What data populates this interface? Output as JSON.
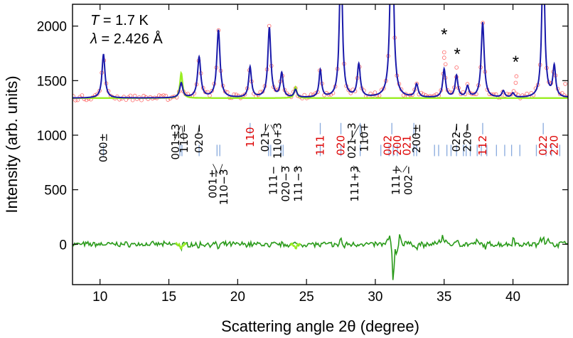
{
  "chart_data": {
    "type": "line",
    "title": "",
    "xlabel": "Scattering angle 2θ (degree)",
    "ylabel": "Intensity (arb. units)",
    "xlim": [
      8,
      44
    ],
    "ylim": [
      -370,
      2200
    ],
    "xticks": [
      10,
      15,
      20,
      25,
      30,
      35,
      40
    ],
    "yticks": [
      0,
      500,
      1000,
      1500,
      2000
    ],
    "annotations": {
      "temperature": {
        "symbol": "T",
        "text": " = 1.7 K"
      },
      "wavelength": {
        "symbol": "λ",
        "text": " = 2.426 Å"
      }
    },
    "colors": {
      "observed": "#ff6666",
      "calculated": "#1a1aaa",
      "difference": "#2a9a1a",
      "magnetic_calc": "#99ee22",
      "bragg_ticks": "#88aadd",
      "nuclear_labels": "#dd0000"
    },
    "series": [
      {
        "role": "calculated",
        "baseline": 1340,
        "peaks": [
          [
            10.25,
            400,
            0.13
          ],
          [
            15.9,
            135,
            0.13
          ],
          [
            17.2,
            370,
            0.14
          ],
          [
            18.6,
            620,
            0.14
          ],
          [
            20.9,
            280,
            0.12
          ],
          [
            22.3,
            640,
            0.13
          ],
          [
            23.2,
            220,
            0.12
          ],
          [
            24.2,
            70,
            0.12
          ],
          [
            26.0,
            250,
            0.11
          ],
          [
            27.5,
            1400,
            0.12
          ],
          [
            28.8,
            300,
            0.13
          ],
          [
            31.2,
            2200,
            0.12
          ],
          [
            33.0,
            120,
            0.13
          ],
          [
            35.0,
            260,
            0.12
          ],
          [
            35.9,
            200,
            0.12
          ],
          [
            36.7,
            100,
            0.12
          ],
          [
            37.8,
            690,
            0.13
          ],
          [
            39.3,
            60,
            0.12
          ],
          [
            40.0,
            40,
            0.12
          ],
          [
            42.2,
            1400,
            0.12
          ],
          [
            43.0,
            280,
            0.12
          ]
        ]
      },
      {
        "role": "magnetic_calculated",
        "peaks": [
          [
            15.9,
            230,
            0.11
          ],
          [
            24.2,
            100,
            0.11
          ]
        ]
      },
      {
        "role": "difference",
        "spikes": [
          [
            15.9,
            -40
          ],
          [
            17.1,
            -30
          ],
          [
            18.6,
            -40
          ],
          [
            22.3,
            -40
          ],
          [
            26.0,
            -20
          ],
          [
            27.2,
            -20
          ],
          [
            27.5,
            60
          ],
          [
            27.7,
            -30
          ],
          [
            29.0,
            15
          ],
          [
            30.9,
            30
          ],
          [
            31.05,
            70
          ],
          [
            31.3,
            -360
          ],
          [
            31.55,
            -80
          ],
          [
            31.8,
            90
          ],
          [
            32.2,
            30
          ],
          [
            33.0,
            -40
          ],
          [
            33.6,
            -20
          ],
          [
            34.6,
            40
          ],
          [
            34.9,
            90
          ],
          [
            35.2,
            40
          ],
          [
            36.0,
            40
          ],
          [
            37.4,
            30
          ],
          [
            38.0,
            -30
          ],
          [
            40.05,
            70
          ],
          [
            41.8,
            -20
          ],
          [
            42.0,
            60
          ],
          [
            42.2,
            80
          ],
          [
            42.5,
            60
          ],
          [
            43.7,
            40
          ]
        ]
      }
    ],
    "extra_observed": [
      [
        35.0,
        1760
      ],
      [
        35.0,
        1710
      ],
      [
        35.1,
        1650
      ],
      [
        35.9,
        1620
      ],
      [
        40.25,
        1540
      ],
      [
        40.2,
        1480
      ],
      [
        43.8,
        1470
      ]
    ],
    "star_marks": [
      [
        35.0,
        1910
      ],
      [
        35.95,
        1730
      ],
      [
        40.2,
        1660
      ]
    ],
    "bragg_tick_rows": [
      {
        "color": "#88aadd",
        "level": 1060,
        "positions": [
          20.9,
          26.0,
          27.5,
          28.9,
          31.2,
          32.8,
          37.8,
          42.2
        ]
      },
      {
        "color": "#88aadd",
        "level": 860,
        "positions": [
          10.25,
          15.8,
          15.95,
          17.2,
          18.5,
          18.7,
          22.25,
          22.4,
          23.15,
          23.3,
          26.0,
          27.5,
          28.9,
          30.4,
          31.0,
          31.3,
          31.6,
          32.8,
          33.0,
          34.3,
          34.6,
          35.2,
          35.5,
          35.9,
          36.4,
          36.6,
          36.9,
          37.4,
          37.7,
          38.1,
          38.8,
          39.4,
          39.9,
          40.5,
          41.7,
          42.4,
          42.8,
          43.4
        ]
      }
    ],
    "peak_labels": [
      {
        "x": 10.25,
        "y": 1020,
        "rot": -90,
        "color": "#000000",
        "text": "000±"
      },
      {
        "x": 15.5,
        "y": 1105,
        "rot": -90,
        "color": "#000000",
        "text": "001±3"
      },
      {
        "x": 16.1,
        "y": 1105,
        "rot": -90,
        "color": "#000000",
        "text": "110−"
      },
      {
        "x": 17.2,
        "y": 1105,
        "rot": -90,
        "color": "#000000",
        "text": "020−"
      },
      {
        "x": 20.9,
        "y": 1075,
        "rot": -90,
        "color": "#dd0000",
        "text": "110"
      },
      {
        "x": 22.0,
        "y": 1115,
        "rot": -90,
        "color": "#000000",
        "text": "021−"
      },
      {
        "x": 22.9,
        "y": 1115,
        "rot": -90,
        "color": "#000000",
        "text": "110+3"
      },
      {
        "x": 26.0,
        "y": 1000,
        "rot": -90,
        "color": "#dd0000",
        "text": "111"
      },
      {
        "x": 27.5,
        "y": 1000,
        "rot": -90,
        "color": "#dd0000",
        "text": "020"
      },
      {
        "x": 28.3,
        "y": 1115,
        "rot": -90,
        "color": "#000000",
        "text": "021−3"
      },
      {
        "x": 29.2,
        "y": 1115,
        "rot": -90,
        "color": "#000000",
        "text": "110+"
      },
      {
        "x": 30.9,
        "y": 1000,
        "rot": -90,
        "color": "#dd0000",
        "text": "002"
      },
      {
        "x": 31.6,
        "y": 1000,
        "rot": -90,
        "color": "#dd0000",
        "text": "200"
      },
      {
        "x": 32.3,
        "y": 1000,
        "rot": -90,
        "color": "#dd0000",
        "text": "021"
      },
      {
        "x": 33.0,
        "y": 1105,
        "rot": -90,
        "color": "#000000",
        "text": "200±"
      },
      {
        "x": 35.9,
        "y": 1115,
        "rot": -90,
        "color": "#000000",
        "text": "022−"
      },
      {
        "x": 36.7,
        "y": 1115,
        "rot": -90,
        "color": "#000000",
        "text": "220−"
      },
      {
        "x": 37.8,
        "y": 1000,
        "rot": -90,
        "color": "#dd0000",
        "text": "112"
      },
      {
        "x": 42.2,
        "y": 1000,
        "rot": -90,
        "color": "#dd0000",
        "text": "022"
      },
      {
        "x": 43.0,
        "y": 1000,
        "rot": -90,
        "color": "#dd0000",
        "text": "220"
      },
      {
        "x": 18.2,
        "y": 690,
        "rot": -90,
        "color": "#000000",
        "text": "001±"
      },
      {
        "x": 19.0,
        "y": 690,
        "rot": -90,
        "color": "#000000",
        "text": "110−3"
      },
      {
        "x": 22.6,
        "y": 720,
        "rot": -90,
        "color": "#000000",
        "text": "111−"
      },
      {
        "x": 23.5,
        "y": 720,
        "rot": -90,
        "color": "#000000",
        "text": "020−3"
      },
      {
        "x": 24.4,
        "y": 720,
        "rot": -90,
        "color": "#000000",
        "text": "111−3"
      },
      {
        "x": 28.5,
        "y": 720,
        "rot": -90,
        "color": "#000000",
        "text": "111+3"
      },
      {
        "x": 31.5,
        "y": 720,
        "rot": -90,
        "color": "#000000",
        "text": "111+"
      },
      {
        "x": 32.4,
        "y": 720,
        "rot": -90,
        "color": "#000000",
        "text": "002−"
      }
    ],
    "leader_lines": [
      [
        15.4,
        950,
        15.85,
        1085
      ],
      [
        16.1,
        950,
        15.95,
        1085
      ],
      [
        17.1,
        1000,
        17.2,
        1085
      ],
      [
        21.9,
        1010,
        22.25,
        1095
      ],
      [
        22.8,
        1010,
        22.4,
        1095
      ],
      [
        28.2,
        950,
        28.85,
        1095
      ],
      [
        29.1,
        950,
        28.95,
        1095
      ],
      [
        32.9,
        990,
        32.95,
        1095
      ],
      [
        35.8,
        1000,
        35.9,
        1095
      ],
      [
        36.6,
        1000,
        36.65,
        1095
      ],
      [
        18.2,
        735,
        18.55,
        650
      ],
      [
        18.9,
        735,
        18.65,
        650
      ],
      [
        23.2,
        720,
        23.2,
        660
      ],
      [
        24.3,
        720,
        24.2,
        660
      ],
      [
        28.4,
        720,
        28.9,
        660
      ],
      [
        31.5,
        720,
        31.9,
        660
      ],
      [
        32.3,
        720,
        32.0,
        660
      ]
    ]
  }
}
